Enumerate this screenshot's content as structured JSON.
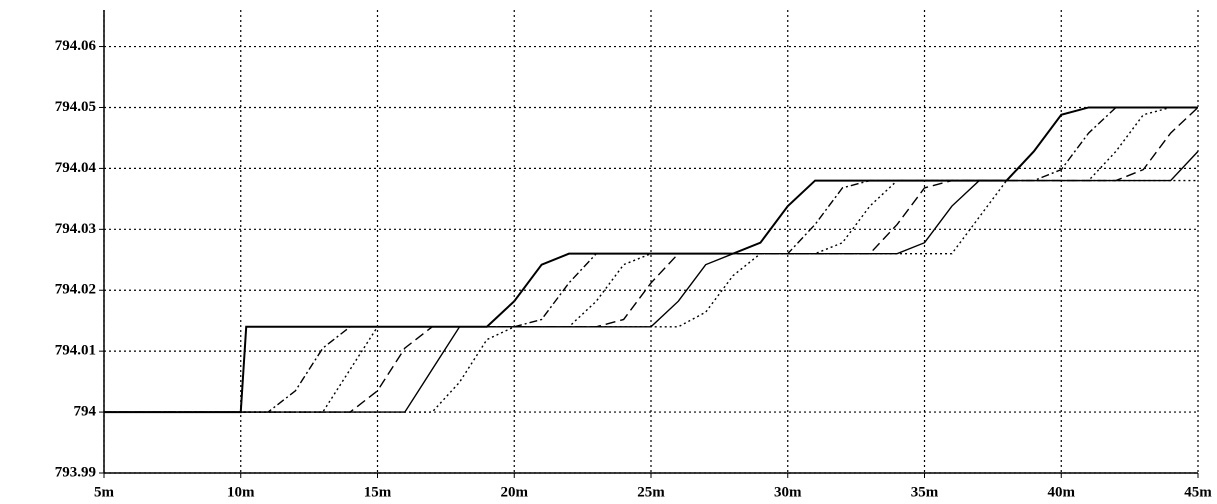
{
  "chart_data": {
    "type": "line",
    "x": [
      5,
      10,
      10.2,
      11,
      12,
      13,
      14,
      15,
      16,
      17,
      18,
      19,
      20,
      21,
      22,
      23,
      24,
      25,
      26,
      27,
      28,
      29,
      30,
      31,
      32,
      33,
      34,
      35,
      36,
      37,
      38,
      39,
      40,
      41,
      42,
      43,
      44,
      45
    ],
    "series": [
      {
        "color": "#000000",
        "style": "solid",
        "values": [
          794,
          794,
          794.014,
          794.014,
          794.014,
          794.014,
          794.014,
          794.014,
          794.014,
          794.014,
          794.014,
          794.014,
          794.0182,
          794.0242,
          794.026,
          794.026,
          794.026,
          794.026,
          794.026,
          794.026,
          794.026,
          794.0278,
          794.0338,
          794.038,
          794.038,
          794.038,
          794.038,
          794.038,
          794.038,
          794.038,
          794.038,
          794.0428,
          794.0488,
          794.05,
          794.05,
          794.05,
          794.05,
          794.05
        ]
      },
      {
        "color": "#000000",
        "style": "dashdot",
        "values": [
          794,
          794,
          794,
          794,
          794.0035,
          794.0105,
          794.014,
          794.014,
          794.014,
          794.014,
          794.014,
          794.014,
          794.014,
          794.0152,
          794.0212,
          794.026,
          794.026,
          794.026,
          794.026,
          794.026,
          794.026,
          794.026,
          794.026,
          794.0308,
          794.0368,
          794.038,
          794.038,
          794.038,
          794.038,
          794.038,
          794.038,
          794.038,
          794.0398,
          794.0458,
          794.05,
          794.05,
          794.05,
          794.05
        ]
      },
      {
        "color": "#000000",
        "style": "dotted",
        "values": [
          794,
          794,
          794,
          794,
          794,
          794,
          794.007,
          794.014,
          794.014,
          794.014,
          794.014,
          794.014,
          794.014,
          794.014,
          794.014,
          794.0182,
          794.0242,
          794.026,
          794.026,
          794.026,
          794.026,
          794.026,
          794.026,
          794.026,
          794.0278,
          794.0338,
          794.038,
          794.038,
          794.038,
          794.038,
          794.038,
          794.038,
          794.038,
          794.038,
          794.0428,
          794.0488,
          794.05,
          794.05
        ]
      },
      {
        "color": "#000000",
        "style": "dashed",
        "values": [
          794,
          794,
          794,
          794,
          794,
          794,
          794,
          794.0035,
          794.0105,
          794.014,
          794.014,
          794.014,
          794.014,
          794.014,
          794.014,
          794.014,
          794.0152,
          794.0212,
          794.026,
          794.026,
          794.026,
          794.026,
          794.026,
          794.026,
          794.026,
          794.026,
          794.0308,
          794.0368,
          794.038,
          794.038,
          794.038,
          794.038,
          794.038,
          794.038,
          794.038,
          794.0398,
          794.0458,
          794.05
        ]
      },
      {
        "color": "#000000",
        "style": "solid",
        "values": [
          794,
          794,
          794,
          794,
          794,
          794,
          794,
          794,
          794,
          794.007,
          794.014,
          794.014,
          794.014,
          794.014,
          794.014,
          794.014,
          794.014,
          794.014,
          794.0182,
          794.0242,
          794.026,
          794.026,
          794.026,
          794.026,
          794.026,
          794.026,
          794.026,
          794.0278,
          794.0338,
          794.038,
          794.038,
          794.038,
          794.038,
          794.038,
          794.038,
          794.038,
          794.038,
          794.0428
        ]
      },
      {
        "color": "#000000",
        "style": "dotted",
        "values": [
          794,
          794,
          794,
          794,
          794,
          794,
          794,
          794,
          794,
          794,
          794.0049,
          794.0119,
          794.014,
          794.014,
          794.014,
          794.014,
          794.014,
          794.014,
          794.014,
          794.0164,
          794.0224,
          794.026,
          794.026,
          794.026,
          794.026,
          794.026,
          794.026,
          794.026,
          794.026,
          794.032,
          794.038,
          794.038,
          794.038,
          794.038,
          794.038,
          794.038,
          794.038,
          794.038
        ]
      }
    ],
    "xlim": [
      5,
      45
    ],
    "xticks": [
      {
        "value": 5,
        "label": "5m"
      },
      {
        "value": 10,
        "label": "10m"
      },
      {
        "value": 15,
        "label": "15m"
      },
      {
        "value": 20,
        "label": "20m"
      },
      {
        "value": 25,
        "label": "25m"
      },
      {
        "value": 30,
        "label": "30m"
      },
      {
        "value": 35,
        "label": "35m"
      },
      {
        "value": 40,
        "label": "40m"
      },
      {
        "value": 45,
        "label": "45m"
      }
    ],
    "ylim": [
      793.99,
      794.066
    ],
    "yticks": [
      793.99,
      794,
      794.01,
      794.02,
      794.03,
      794.04,
      794.05,
      794.06
    ],
    "grid": true
  }
}
